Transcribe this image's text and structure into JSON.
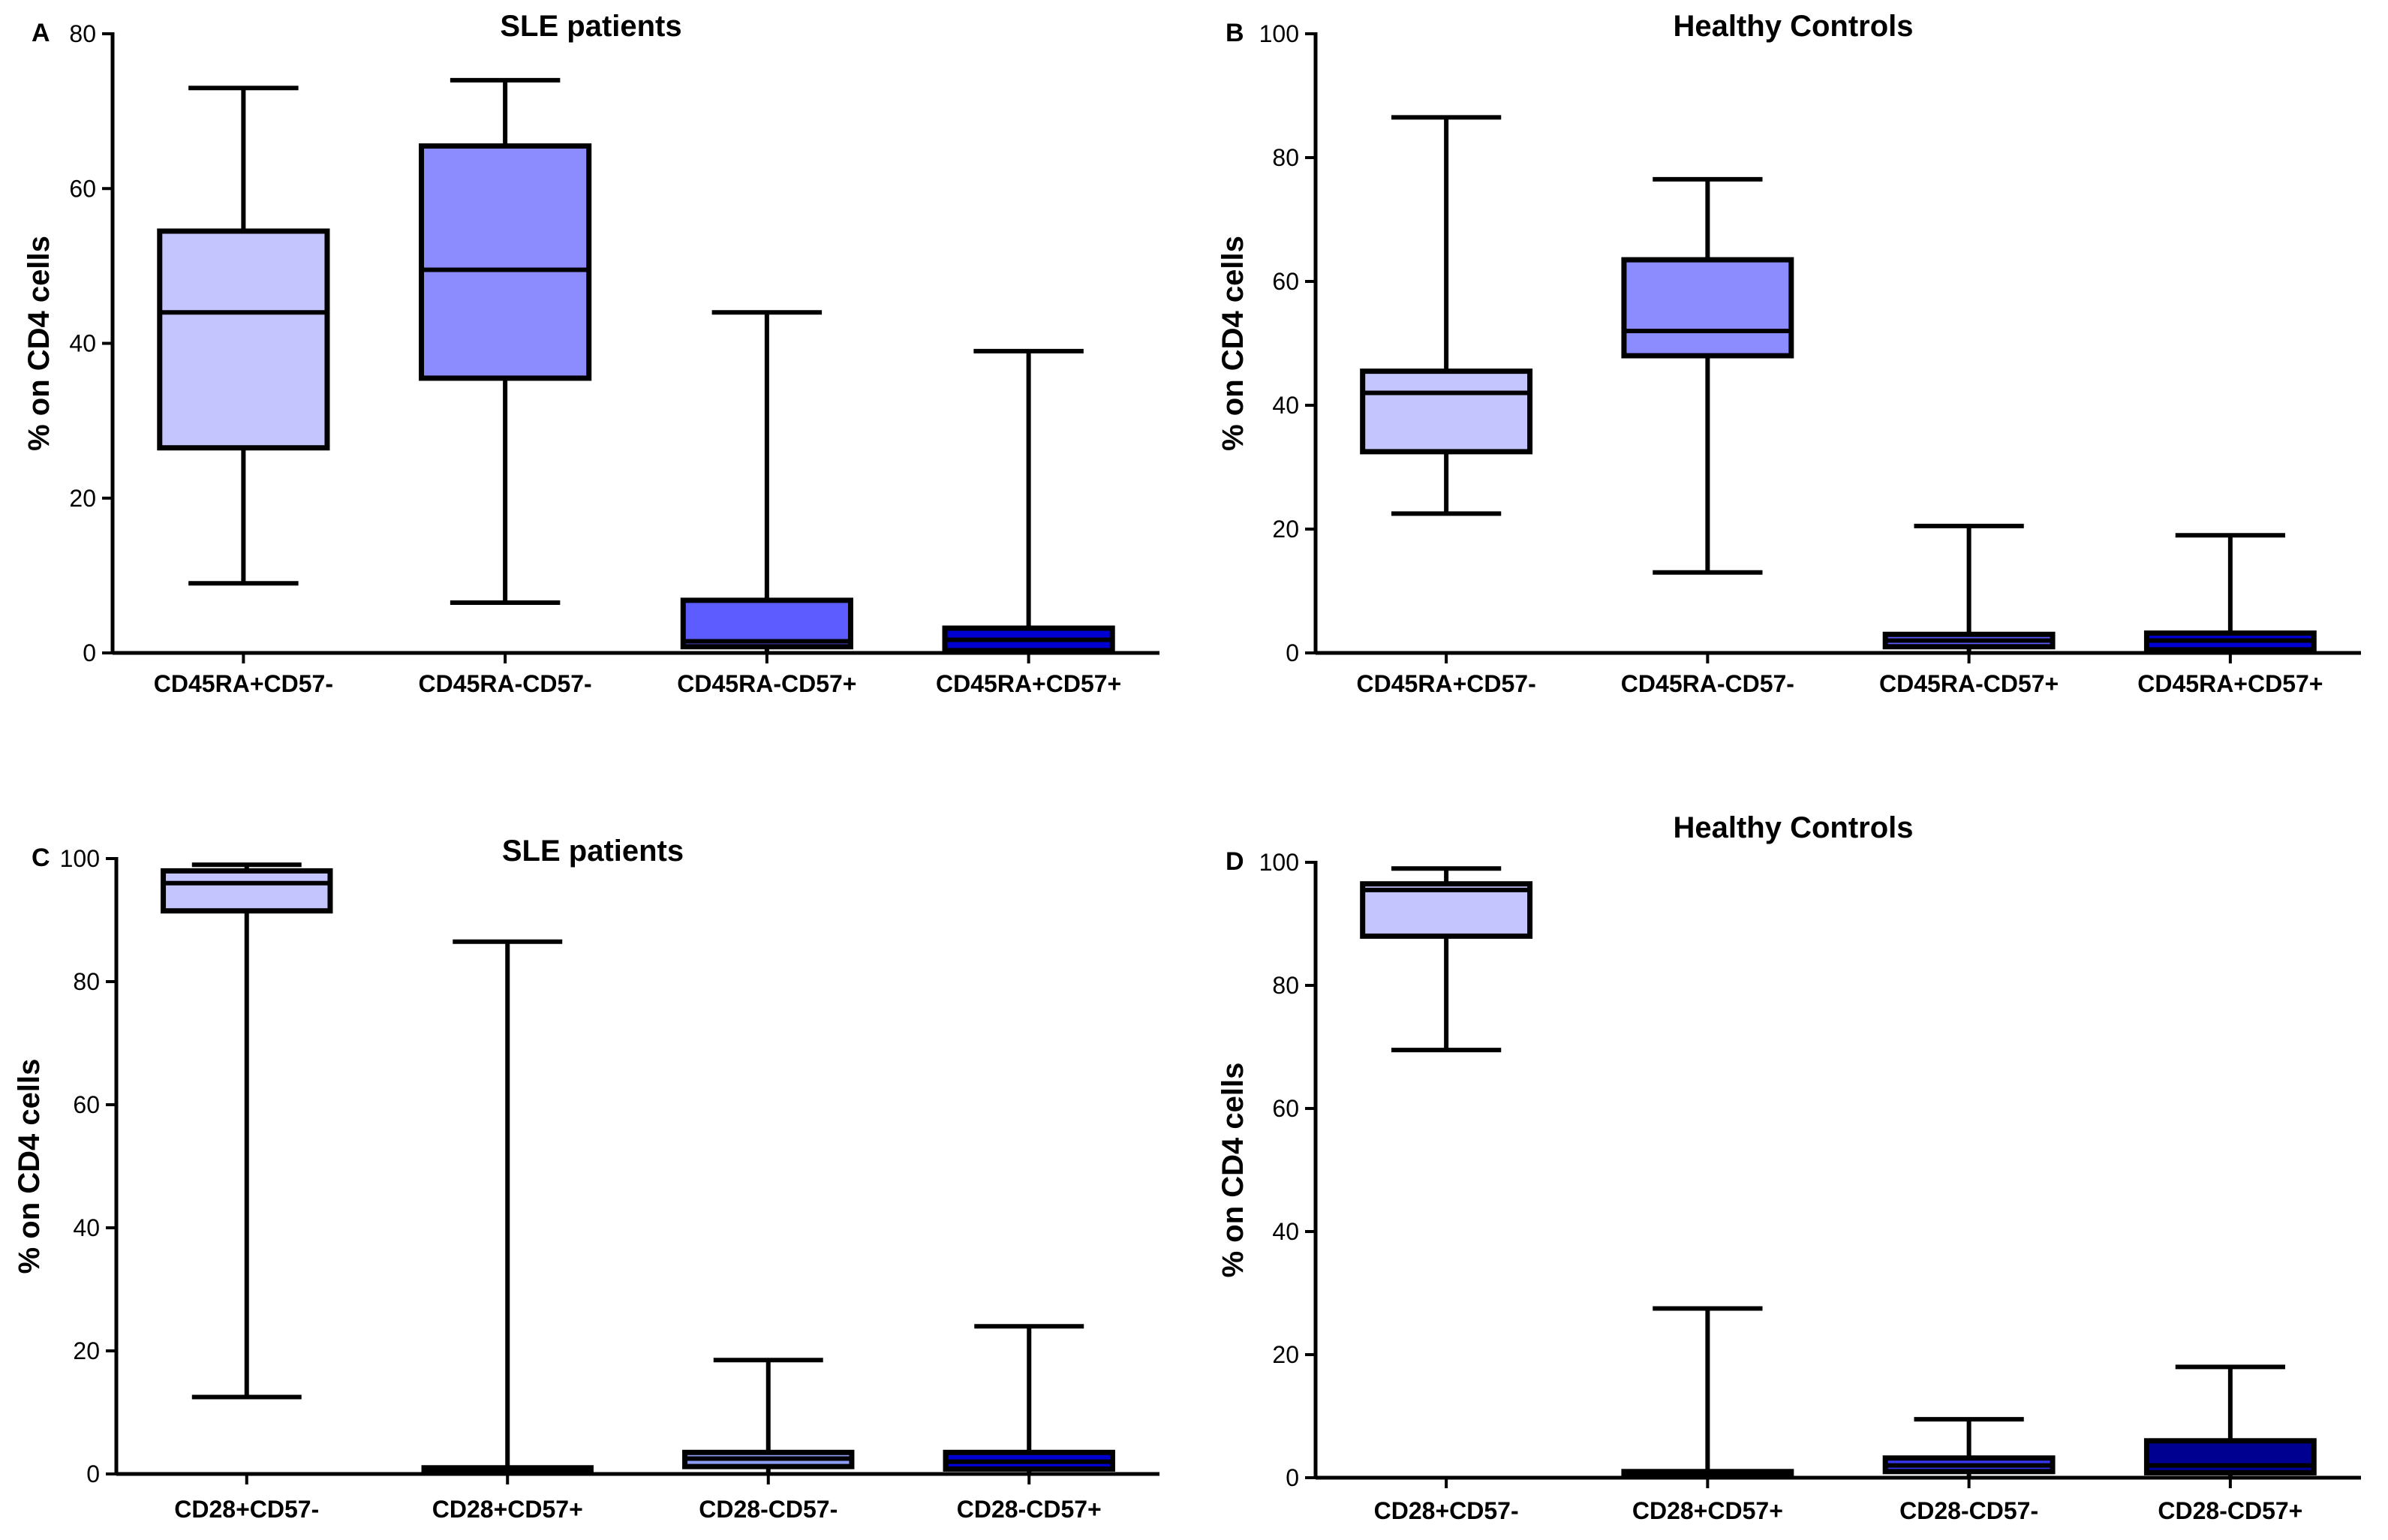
{
  "figure": {
    "panels": [
      {
        "id": "A",
        "letter": "A",
        "title": "SLE patients",
        "ylabel": "% on CD4 cells"
      },
      {
        "id": "B",
        "letter": "B",
        "title": "Healthy Controls",
        "ylabel": "% on CD4 cells"
      },
      {
        "id": "C",
        "letter": "C",
        "title": "SLE patients",
        "ylabel": "% on CD4 cells"
      },
      {
        "id": "D",
        "letter": "D",
        "title": "Healthy Controls",
        "ylabel": "% on CD4 cells"
      }
    ]
  },
  "chart_data": [
    {
      "panel": "A",
      "type": "box",
      "title": "SLE patients",
      "xlabel": "",
      "ylabel": "% on CD4 cells",
      "ylim": [
        0,
        80
      ],
      "yticks": [
        0,
        20,
        40,
        60,
        80
      ],
      "categories": [
        "CD45RA+CD57-",
        "CD45RA-CD57-",
        "CD45RA-CD57+",
        "CD45RA+CD57+"
      ],
      "colors": [
        "#c4c4ff",
        "#8c8cff",
        "#5c5cff",
        "#0000d0"
      ],
      "boxes": [
        {
          "min": 9,
          "q1": 26.5,
          "median": 44,
          "q3": 54.5,
          "max": 73
        },
        {
          "min": 6.5,
          "q1": 35.5,
          "median": 49.5,
          "q3": 65.5,
          "max": 74
        },
        {
          "min": 0,
          "q1": 0.8,
          "median": 1.5,
          "q3": 6.8,
          "max": 44
        },
        {
          "min": 0,
          "q1": 0.3,
          "median": 1.7,
          "q3": 3.2,
          "max": 39
        }
      ]
    },
    {
      "panel": "B",
      "type": "box",
      "title": "Healthy Controls",
      "xlabel": "",
      "ylabel": "% on CD4 cells",
      "ylim": [
        0,
        100
      ],
      "yticks": [
        0,
        20,
        40,
        60,
        80,
        100
      ],
      "categories": [
        "CD45RA+CD57-",
        "CD45RA-CD57-",
        "CD45RA-CD57+",
        "CD45RA+CD57+"
      ],
      "colors": [
        "#c4c4ff",
        "#8c8cff",
        "#5c5cff",
        "#0000d0"
      ],
      "boxes": [
        {
          "min": 22.5,
          "q1": 32.5,
          "median": 42,
          "q3": 45.5,
          "max": 86.5
        },
        {
          "min": 13,
          "q1": 48,
          "median": 52,
          "q3": 63.5,
          "max": 76.5
        },
        {
          "min": 0,
          "q1": 1,
          "median": 2,
          "q3": 3,
          "max": 20.5
        },
        {
          "min": 0,
          "q1": 0.5,
          "median": 2,
          "q3": 3.2,
          "max": 19
        }
      ]
    },
    {
      "panel": "C",
      "type": "box",
      "title": "SLE patients",
      "xlabel": "",
      "ylabel": "% on CD4 cells",
      "ylim": [
        0,
        100
      ],
      "yticks": [
        0,
        20,
        40,
        60,
        80,
        100
      ],
      "categories": [
        "CD28+CD57-",
        "CD28+CD57+",
        "CD28-CD57-",
        "CD28-CD57+"
      ],
      "colors": [
        "#c4c4ff",
        "#8c8cff",
        "#8c9cf0",
        "#0000d0"
      ],
      "boxes": [
        {
          "min": 12.5,
          "q1": 91.5,
          "median": 96,
          "q3": 98,
          "max": 99
        },
        {
          "min": 0,
          "q1": 0.2,
          "median": 0.6,
          "q3": 1,
          "max": 86.5
        },
        {
          "min": 0,
          "q1": 1.2,
          "median": 2.5,
          "q3": 3.5,
          "max": 18.5
        },
        {
          "min": 0,
          "q1": 0.8,
          "median": 2,
          "q3": 3.5,
          "max": 24
        }
      ]
    },
    {
      "panel": "D",
      "type": "box",
      "title": "Healthy Controls",
      "xlabel": "",
      "ylabel": "% on CD4 cells",
      "ylim": [
        0,
        100
      ],
      "yticks": [
        0,
        20,
        40,
        60,
        80,
        100
      ],
      "categories": [
        "CD28+CD57-",
        "CD28+CD57+",
        "CD28-CD57-",
        "CD28-CD57+"
      ],
      "colors": [
        "#c4c4ff",
        "#8c8cff",
        "#3838f0",
        "#000090"
      ],
      "boxes": [
        {
          "min": 69.5,
          "q1": 88,
          "median": 95.5,
          "q3": 96.5,
          "max": 99
        },
        {
          "min": 0,
          "q1": 0.2,
          "median": 0.6,
          "q3": 1,
          "max": 27.5
        },
        {
          "min": 0,
          "q1": 1,
          "median": 2,
          "q3": 3.2,
          "max": 9.5
        },
        {
          "min": 0,
          "q1": 0.8,
          "median": 2,
          "q3": 6,
          "max": 18
        }
      ]
    }
  ]
}
